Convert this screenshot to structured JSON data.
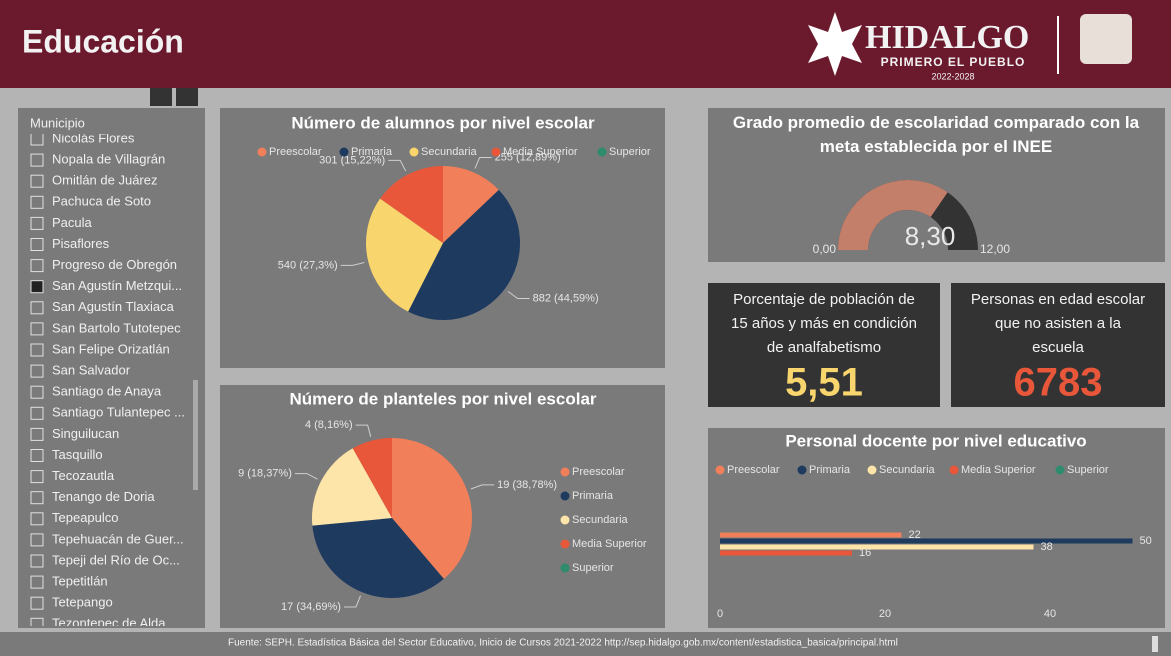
{
  "header": {
    "title": "Educación",
    "brand": "HIDALGO",
    "slogan": "PRIMERO EL PUEBLO",
    "period": "2022-2028"
  },
  "slicer": {
    "label": "Municipio",
    "items": [
      "Nicolás Flores",
      "Nopala de Villagrán",
      "Omitlán de Juárez",
      "Pachuca de Soto",
      "Pacula",
      "Pisaflores",
      "Progreso de Obregón",
      "San Agustín Metzqui...",
      "San Agustín Tlaxiaca",
      "San Bartolo Tutotepec",
      "San Felipe Orizatlán",
      "San Salvador",
      "Santiago de Anaya",
      "Santiago Tulantepec ...",
      "Singuilucan",
      "Tasquillo",
      "Tecozautla",
      "Tenango de Doria",
      "Tepeapulco",
      "Tepehuacán de Guer...",
      "Tepeji del Río de Oc...",
      "Tepetitlán",
      "Tetepango",
      "Tezontepec de Alda..."
    ],
    "selected": "San Agustín Metzqui..."
  },
  "chart_data": [
    {
      "type": "pie",
      "title": "Número de alumnos por nivel escolar",
      "legend": "top",
      "categories": [
        "Preescolar",
        "Primaria",
        "Secundaria",
        "Media Superior",
        "Superior"
      ],
      "values": [
        255,
        882,
        540,
        301,
        0
      ],
      "value_labels": [
        "255 (12,89%)",
        "882 (44,59%)",
        "540 (27,3%)",
        "301 (15,22%)",
        null
      ],
      "colors": [
        "#f07f5a",
        "#1f3a5f",
        "#f9d56e",
        "#e8573a",
        "#2e8b6e"
      ]
    },
    {
      "type": "pie",
      "title": "Número de planteles por nivel escolar",
      "legend": "right",
      "categories": [
        "Preescolar",
        "Primaria",
        "Secundaria",
        "Media Superior",
        "Superior"
      ],
      "values": [
        19,
        17,
        9,
        4,
        0
      ],
      "value_labels": [
        "19 (38,78%)",
        "17 (34,69%)",
        "9 (18,37%)",
        "4 (8,16%)",
        null
      ],
      "colors": [
        "#f07f5a",
        "#1f3a5f",
        "#fde4a8",
        "#e8573a",
        "#2e8b6e"
      ]
    },
    {
      "type": "gauge",
      "title": "Grado promedio de escolaridad comparado con la meta establecida por el INEE",
      "value": 8.3,
      "value_label": "8,30",
      "ylim": [
        0,
        12
      ],
      "yticks": [
        {
          "value": 0,
          "label": "0,00"
        },
        {
          "value": 12,
          "label": "12,00"
        }
      ],
      "color": "#c47f6b",
      "track_color": "#333333"
    },
    {
      "type": "bar",
      "orientation": "horizontal",
      "title": "Personal docente por nivel educativo",
      "legend": "top",
      "categories": [
        null
      ],
      "series": [
        {
          "name": "Preescolar",
          "color": "#f07f5a",
          "values": [
            22
          ]
        },
        {
          "name": "Primaria",
          "color": "#1f3a5f",
          "values": [
            50
          ]
        },
        {
          "name": "Secundaria",
          "color": "#fde4a8",
          "values": [
            38
          ]
        },
        {
          "name": "Media Superior",
          "color": "#e8573a",
          "values": [
            16
          ]
        },
        {
          "name": "Superior",
          "color": "#2e8b6e",
          "values": [
            null
          ]
        }
      ],
      "xlim": [
        0,
        52
      ],
      "xticks": [
        0,
        20,
        40
      ]
    }
  ],
  "cards": [
    {
      "label": "Porcentaje de población de 15 años y más en condición de analfabetismo",
      "value": 5.51,
      "value_label": "5,51",
      "color": "#f9d56e"
    },
    {
      "label": "Personas en edad escolar que no asisten a la escuela",
      "value": 6783,
      "color": "#e8573a"
    }
  ],
  "footer": "Fuente: SEPH. Estadística Básica del Sector Educativo, Inicio de Cursos 2021-2022 http://sep.hidalgo.gob.mx/content/estadistica_basica/principal.html"
}
